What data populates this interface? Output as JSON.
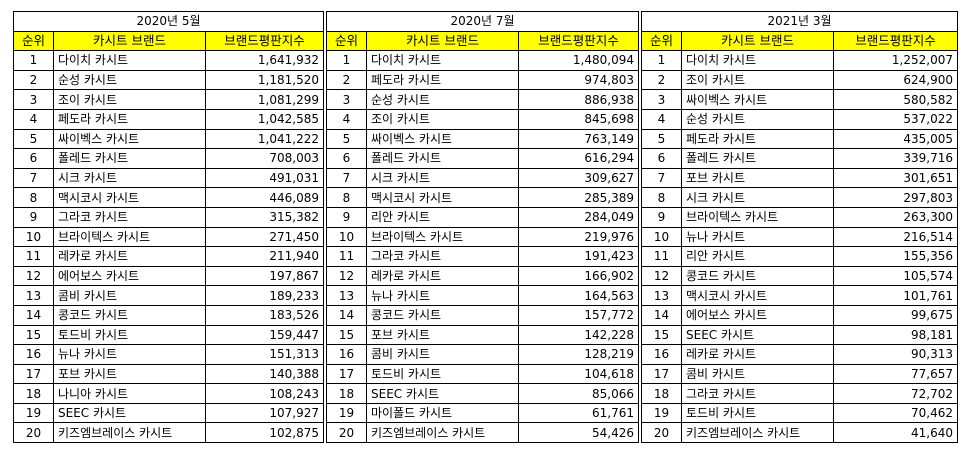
{
  "tables": [
    {
      "period": "2020년 5월",
      "headers": [
        "순위",
        "카시트 브랜드",
        "브랜드평판지수"
      ],
      "rows": [
        [
          "1",
          "다이치 카시트",
          "1,641,932"
        ],
        [
          "2",
          "순성 카시트",
          "1,181,520"
        ],
        [
          "3",
          "조이 카시트",
          "1,081,299"
        ],
        [
          "4",
          "페도라 카시트",
          "1,042,585"
        ],
        [
          "5",
          "싸이벡스 카시트",
          "1,041,222"
        ],
        [
          "6",
          "폴레드 카시트",
          "708,003"
        ],
        [
          "7",
          "시크 카시트",
          "491,031"
        ],
        [
          "8",
          "맥시코시 카시트",
          "446,089"
        ],
        [
          "9",
          "그라코 카시트",
          "315,382"
        ],
        [
          "10",
          "브라이텍스 카시트",
          "271,450"
        ],
        [
          "11",
          "레카로 카시트",
          "211,940"
        ],
        [
          "12",
          "에어보스 카시트",
          "197,867"
        ],
        [
          "13",
          "콤비 카시트",
          "189,233"
        ],
        [
          "14",
          "콩코드 카시트",
          "183,526"
        ],
        [
          "15",
          "토드비 카시트",
          "159,447"
        ],
        [
          "16",
          "뉴나 카시트",
          "151,313"
        ],
        [
          "17",
          "포브 카시트",
          "140,388"
        ],
        [
          "18",
          "나니아 카시트",
          "108,243"
        ],
        [
          "19",
          "SEEC 카시트",
          "107,927"
        ],
        [
          "20",
          "키즈엠브레이스 카시트",
          "102,875"
        ]
      ]
    },
    {
      "period": "2020년 7월",
      "headers": [
        "순위",
        "카시트 브랜드",
        "브랜드평판지수"
      ],
      "rows": [
        [
          "1",
          "다이치 카시트",
          "1,480,094"
        ],
        [
          "2",
          "페도라 카시트",
          "974,803"
        ],
        [
          "3",
          "순성 카시트",
          "886,938"
        ],
        [
          "4",
          "조이 카시트",
          "845,698"
        ],
        [
          "5",
          "싸이벡스 카시트",
          "763,149"
        ],
        [
          "6",
          "폴레드 카시트",
          "616,294"
        ],
        [
          "7",
          "시크 카시트",
          "309,627"
        ],
        [
          "8",
          "맥시코시 카시트",
          "285,389"
        ],
        [
          "9",
          "리안 카시트",
          "284,049"
        ],
        [
          "10",
          "브라이텍스 카시트",
          "219,976"
        ],
        [
          "11",
          "그라코 카시트",
          "191,423"
        ],
        [
          "12",
          "레카로 카시트",
          "166,902"
        ],
        [
          "13",
          "뉴나 카시트",
          "164,563"
        ],
        [
          "14",
          "콩코드 카시트",
          "157,772"
        ],
        [
          "15",
          "포브 카시트",
          "142,228"
        ],
        [
          "16",
          "콤비 카시트",
          "128,219"
        ],
        [
          "17",
          "토드비 카시트",
          "104,618"
        ],
        [
          "18",
          "SEEC 카시트",
          "85,066"
        ],
        [
          "19",
          "마이폴드 카시트",
          "61,761"
        ],
        [
          "20",
          "키즈엠브레이스 카시트",
          "54,426"
        ]
      ]
    },
    {
      "period": "2021년 3월",
      "headers": [
        "순위",
        "카시트 브랜드",
        "브랜드평판지수"
      ],
      "rows": [
        [
          "1",
          "다이치 카시트",
          "1,252,007"
        ],
        [
          "2",
          "조이 카시트",
          "624,900"
        ],
        [
          "3",
          "싸이벡스 카시트",
          "580,582"
        ],
        [
          "4",
          "순성 카시트",
          "537,022"
        ],
        [
          "5",
          "페도라 카시트",
          "435,005"
        ],
        [
          "6",
          "폴레드 카시트",
          "339,716"
        ],
        [
          "7",
          "포브 카시트",
          "301,651"
        ],
        [
          "8",
          "시크 카시트",
          "297,803"
        ],
        [
          "9",
          "브라이텍스 카시트",
          "263,300"
        ],
        [
          "10",
          "뉴나 카시트",
          "216,514"
        ],
        [
          "11",
          "리안 카시트",
          "155,356"
        ],
        [
          "12",
          "콩코드 카시트",
          "105,574"
        ],
        [
          "13",
          "맥시코시 카시트",
          "101,761"
        ],
        [
          "14",
          "에어보스 카시트",
          "99,675"
        ],
        [
          "15",
          "SEEC 카시트",
          "98,181"
        ],
        [
          "16",
          "레카로 카시트",
          "90,313"
        ],
        [
          "17",
          "콤비 카시트",
          "77,657"
        ],
        [
          "18",
          "그라코 카시트",
          "72,702"
        ],
        [
          "19",
          "토드비 카시트",
          "70,462"
        ],
        [
          "20",
          "키즈엠브레이스 카시트",
          "41,640"
        ]
      ]
    }
  ]
}
